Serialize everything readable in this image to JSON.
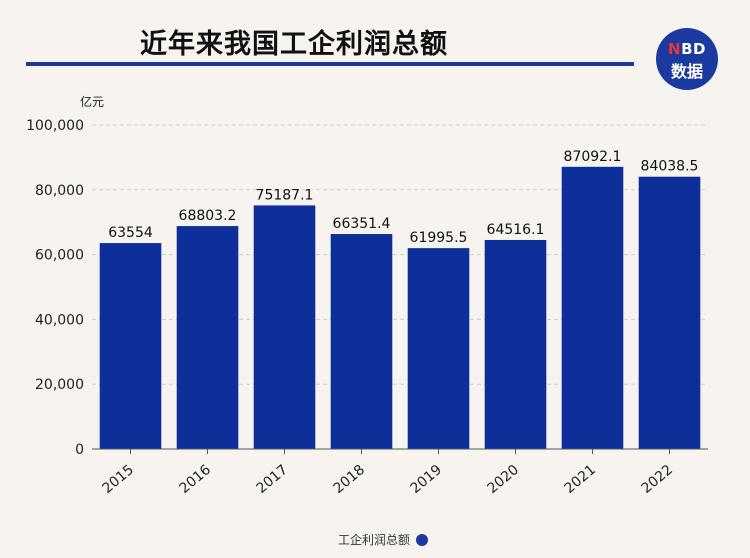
{
  "title": "近年来我国工企利润总额",
  "logo": {
    "line1_n": "N",
    "line1_rest": "BD",
    "line2": "数据"
  },
  "legend": {
    "label": "工企利润总额"
  },
  "colors": {
    "bar": "#0d2f9a",
    "accent": "#1a3aa0",
    "grid": "#cfcfcf"
  },
  "chart_data": {
    "type": "bar",
    "title": "近年来我国工企利润总额",
    "ylabel": "亿元",
    "xlabel": "",
    "ylim": [
      0,
      100000
    ],
    "yticks": [
      0,
      20000,
      40000,
      60000,
      80000,
      100000
    ],
    "ytick_labels": [
      "0",
      "20,000",
      "40,000",
      "60,000",
      "80,000",
      "100,000"
    ],
    "categories": [
      "2015",
      "2016",
      "2017",
      "2018",
      "2019",
      "2020",
      "2021",
      "2022"
    ],
    "series": [
      {
        "name": "工企利润总额",
        "values": [
          63554,
          68803.2,
          75187.1,
          66351.4,
          61995.5,
          64516.1,
          87092.1,
          84038.5
        ],
        "labels": [
          "63554",
          "68803.2",
          "75187.1",
          "66351.4",
          "61995.5",
          "64516.1",
          "87092.1",
          "84038.5"
        ]
      }
    ],
    "grid": true,
    "legend_position": "bottom-center"
  }
}
